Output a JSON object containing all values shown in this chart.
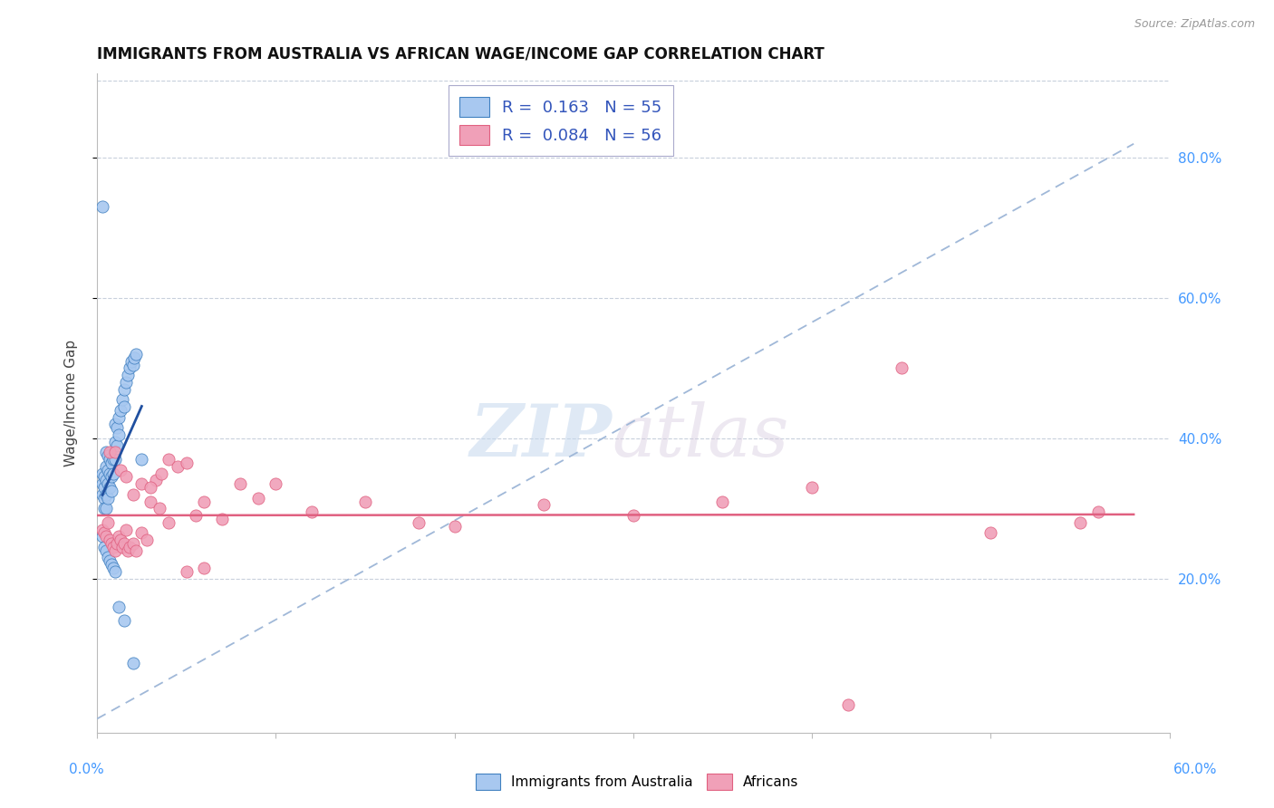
{
  "title": "IMMIGRANTS FROM AUSTRALIA VS AFRICAN WAGE/INCOME GAP CORRELATION CHART",
  "source": "Source: ZipAtlas.com",
  "ylabel": "Wage/Income Gap",
  "yticks": [
    "20.0%",
    "40.0%",
    "60.0%",
    "80.0%"
  ],
  "ytick_vals": [
    0.2,
    0.4,
    0.6,
    0.8
  ],
  "xlim": [
    0.0,
    0.6
  ],
  "ylim": [
    -0.02,
    0.92
  ],
  "legend1_R": "0.163",
  "legend1_N": "55",
  "legend2_R": "0.084",
  "legend2_N": "56",
  "legend1_label": "Immigrants from Australia",
  "legend2_label": "Africans",
  "blue_fill": "#a8c8f0",
  "pink_fill": "#f0a0b8",
  "blue_edge": "#4080c0",
  "pink_edge": "#e06080",
  "blue_line": "#2050a0",
  "pink_line": "#e06080",
  "dash_color": "#a0b8d8",
  "australia_x": [
    0.003,
    0.003,
    0.003,
    0.004,
    0.004,
    0.004,
    0.004,
    0.005,
    0.005,
    0.005,
    0.005,
    0.005,
    0.006,
    0.006,
    0.006,
    0.006,
    0.007,
    0.007,
    0.007,
    0.008,
    0.008,
    0.008,
    0.009,
    0.009,
    0.01,
    0.01,
    0.01,
    0.011,
    0.011,
    0.012,
    0.012,
    0.013,
    0.014,
    0.015,
    0.015,
    0.016,
    0.017,
    0.018,
    0.019,
    0.02,
    0.021,
    0.022,
    0.003,
    0.004,
    0.005,
    0.006,
    0.007,
    0.008,
    0.009,
    0.01,
    0.012,
    0.015,
    0.02,
    0.025,
    0.003
  ],
  "australia_y": [
    0.35,
    0.335,
    0.32,
    0.345,
    0.33,
    0.315,
    0.3,
    0.38,
    0.36,
    0.34,
    0.32,
    0.3,
    0.375,
    0.355,
    0.335,
    0.315,
    0.37,
    0.35,
    0.33,
    0.365,
    0.345,
    0.325,
    0.37,
    0.35,
    0.42,
    0.395,
    0.37,
    0.415,
    0.39,
    0.43,
    0.405,
    0.44,
    0.455,
    0.47,
    0.445,
    0.48,
    0.49,
    0.5,
    0.51,
    0.505,
    0.515,
    0.52,
    0.26,
    0.245,
    0.24,
    0.23,
    0.225,
    0.22,
    0.215,
    0.21,
    0.16,
    0.14,
    0.08,
    0.37,
    0.73
  ],
  "africans_x": [
    0.003,
    0.004,
    0.005,
    0.006,
    0.007,
    0.008,
    0.009,
    0.01,
    0.011,
    0.012,
    0.013,
    0.014,
    0.015,
    0.016,
    0.017,
    0.018,
    0.02,
    0.022,
    0.025,
    0.028,
    0.03,
    0.033,
    0.036,
    0.04,
    0.045,
    0.05,
    0.055,
    0.06,
    0.07,
    0.08,
    0.09,
    0.1,
    0.12,
    0.15,
    0.18,
    0.2,
    0.25,
    0.3,
    0.35,
    0.4,
    0.45,
    0.5,
    0.55,
    0.007,
    0.01,
    0.013,
    0.016,
    0.02,
    0.025,
    0.03,
    0.035,
    0.04,
    0.05,
    0.06,
    0.42,
    0.56
  ],
  "africans_y": [
    0.27,
    0.265,
    0.26,
    0.28,
    0.255,
    0.25,
    0.245,
    0.24,
    0.25,
    0.26,
    0.255,
    0.245,
    0.25,
    0.27,
    0.24,
    0.245,
    0.25,
    0.24,
    0.265,
    0.255,
    0.31,
    0.34,
    0.35,
    0.37,
    0.36,
    0.365,
    0.29,
    0.31,
    0.285,
    0.335,
    0.315,
    0.335,
    0.295,
    0.31,
    0.28,
    0.275,
    0.305,
    0.29,
    0.31,
    0.33,
    0.5,
    0.265,
    0.28,
    0.38,
    0.38,
    0.355,
    0.345,
    0.32,
    0.335,
    0.33,
    0.3,
    0.28,
    0.21,
    0.215,
    0.02,
    0.295
  ]
}
